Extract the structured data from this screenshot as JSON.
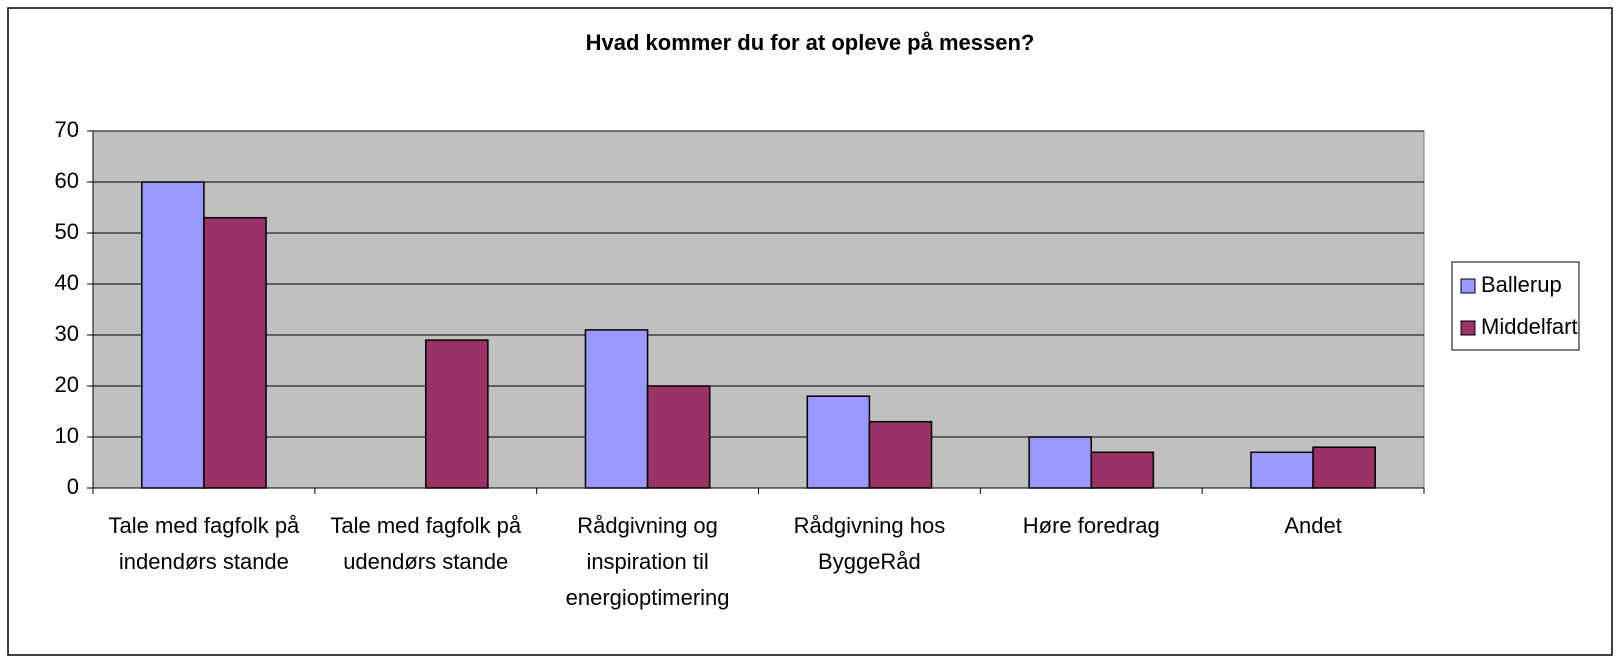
{
  "chart_data": {
    "type": "bar",
    "title": "Hvad kommer du for at opleve på messen?",
    "categories": [
      "Tale med fagfolk på indendørs stande",
      "Tale med fagfolk på udendørs stande",
      "Rådgivning og inspiration til energioptimering",
      "Rådgivning hos ByggeRåd",
      "Høre foredrag",
      "Andet"
    ],
    "series": [
      {
        "name": "Ballerup",
        "color": "#9999ff",
        "values": [
          60,
          0,
          31,
          18,
          10,
          7
        ]
      },
      {
        "name": "Middelfart",
        "color": "#993366",
        "values": [
          53,
          29,
          20,
          13,
          7,
          8
        ]
      }
    ],
    "ylim": [
      0,
      70
    ],
    "yticks": [
      0,
      10,
      20,
      30,
      40,
      50,
      60,
      70
    ],
    "grid": true,
    "legend": "right"
  }
}
